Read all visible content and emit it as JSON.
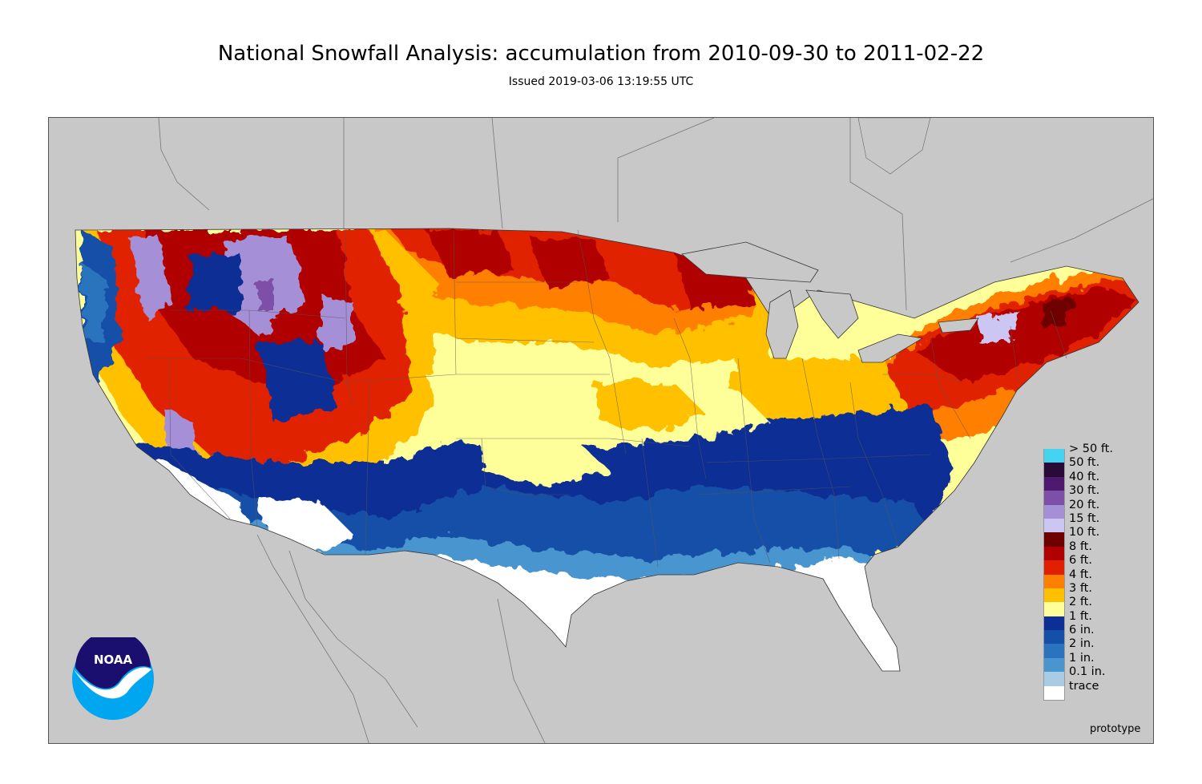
{
  "header": {
    "title": "National Snowfall Analysis: accumulation from 2010-09-30 to 2011-02-22",
    "subtitle": "Issued 2019-03-06 13:19:55 UTC"
  },
  "legend": {
    "items": [
      {
        "label": "> 50 ft.",
        "color": "#44d4f2"
      },
      {
        "label": "50 ft.",
        "color": "#2a0a36"
      },
      {
        "label": "40 ft.",
        "color": "#4e1a6e"
      },
      {
        "label": "30 ft.",
        "color": "#7e4fa6"
      },
      {
        "label": "20 ft.",
        "color": "#a58fd6"
      },
      {
        "label": "15 ft.",
        "color": "#ccc6f2"
      },
      {
        "label": "10 ft.",
        "color": "#6e0000"
      },
      {
        "label": "8 ft.",
        "color": "#b00000"
      },
      {
        "label": "6 ft.",
        "color": "#e02000"
      },
      {
        "label": "4 ft.",
        "color": "#ff8000"
      },
      {
        "label": "3 ft.",
        "color": "#ffc000"
      },
      {
        "label": "2 ft.",
        "color": "#ffff99"
      },
      {
        "label": "1 ft.",
        "color": "#0b2f95"
      },
      {
        "label": "6 in.",
        "color": "#1550a8"
      },
      {
        "label": "2 in.",
        "color": "#2b73bd"
      },
      {
        "label": "1 in.",
        "color": "#4a95cf"
      },
      {
        "label": "0.1 in.",
        "color": "#a8cce4"
      },
      {
        "label": "trace",
        "color": "#ffffff"
      }
    ]
  },
  "logo": {
    "text": "NOAA"
  },
  "footer": {
    "note": "prototype"
  }
}
